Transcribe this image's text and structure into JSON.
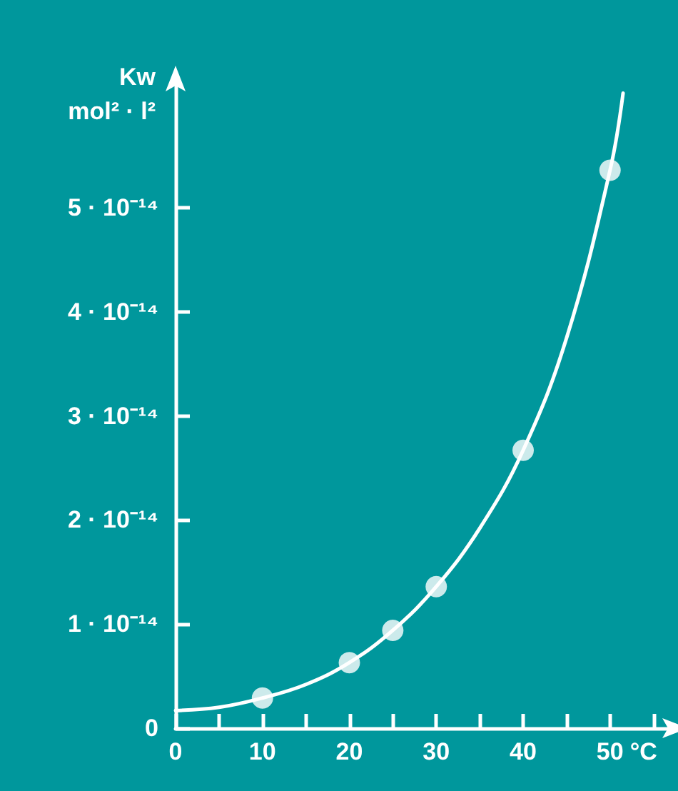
{
  "chart_data": {
    "type": "line",
    "xlabel": "°C",
    "ylabel": "Kw\nmol² · l²",
    "xlim": [
      0,
      57
    ],
    "xticks": [
      0,
      {
        "value": 5,
        "label": null
      },
      10,
      {
        "value": 15,
        "label": null
      },
      20,
      {
        "value": 25,
        "label": null
      },
      30,
      {
        "value": 35,
        "label": null
      },
      40,
      {
        "value": 45,
        "label": null
      },
      50,
      {
        "value": 55,
        "label": null
      }
    ],
    "ylim": [
      0,
      6.2e-14
    ],
    "yticks": [
      0,
      {
        "value": 1e-14,
        "label": "1 · 10⁻¹⁴"
      },
      {
        "value": 2e-14,
        "label": "2 · 10⁻¹⁴"
      },
      {
        "value": 3e-14,
        "label": "3 · 10⁻¹⁴"
      },
      {
        "value": 4e-14,
        "label": "4 · 10⁻¹⁴"
      },
      {
        "value": 5e-14,
        "label": "5 · 10⁻¹⁴"
      }
    ],
    "grid": false,
    "series": [
      {
        "color": "#ffffff",
        "marker": "none",
        "line_style": "solid",
        "x": [
          0,
          5,
          10,
          15,
          20,
          25,
          30,
          35,
          40,
          45,
          50,
          51.5
        ],
        "values": [
          1.7e-15,
          2e-15,
          2.9e-15,
          4.2e-15,
          6.3e-15,
          9.4e-15,
          1.36e-14,
          1.92e-14,
          2.67e-14,
          3.75e-14,
          5.36e-14,
          6.1e-14
        ]
      },
      {
        "type": "scatter",
        "color": "#ffffff",
        "marker": "circle",
        "x": [
          10,
          20,
          25,
          30,
          40,
          50
        ],
        "values": [
          2.9e-15,
          6.3e-15,
          9.4e-15,
          1.36e-14,
          2.67e-14,
          5.36e-14
        ]
      }
    ]
  }
}
